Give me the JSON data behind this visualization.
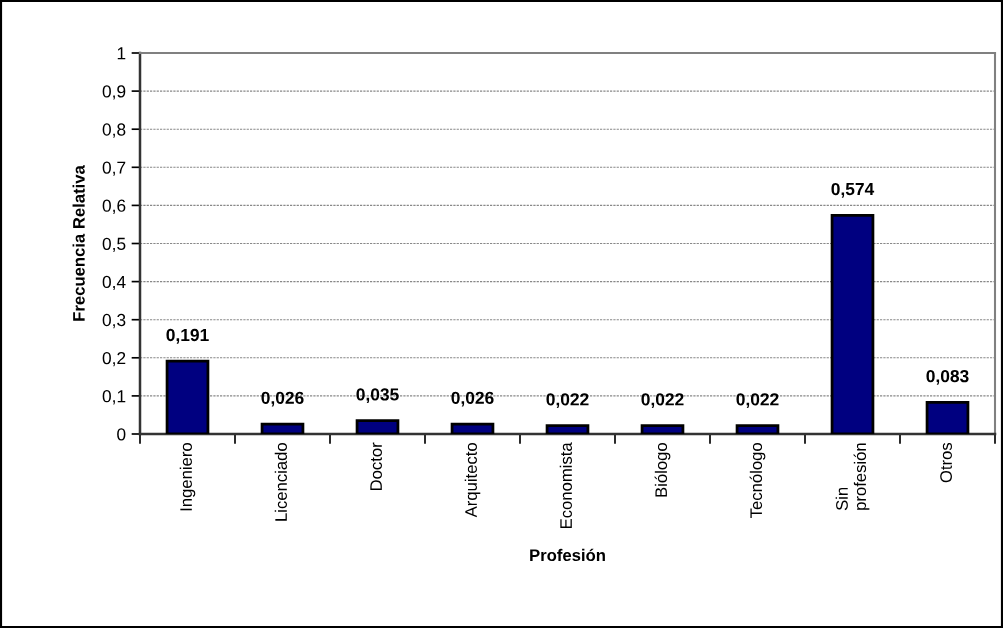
{
  "chart_data": {
    "type": "bar",
    "xlabel": "Profesión",
    "ylabel": "Frecuencia Relativa",
    "categories": [
      "Ingeniero",
      "Licenciado",
      "Doctor",
      "Arquitecto",
      "Economista",
      "Biólogo",
      "Tecnólogo",
      "Sin\nprofesión",
      "Otros"
    ],
    "values": [
      0.191,
      0.026,
      0.035,
      0.026,
      0.022,
      0.022,
      0.022,
      0.574,
      0.083
    ],
    "value_labels": [
      "0,191",
      "0,026",
      "0,035",
      "0,026",
      "0,022",
      "0,022",
      "0,022",
      "0,574",
      "0,083"
    ],
    "color": "#000080",
    "ylim": [
      0,
      1
    ],
    "yticks": [
      0,
      {
        "value": 0.1,
        "label": "0,1"
      },
      {
        "value": 0.2,
        "label": "0,2"
      },
      {
        "value": 0.3,
        "label": "0,3"
      },
      {
        "value": 0.4,
        "label": "0,4"
      },
      {
        "value": 0.5,
        "label": "0,5"
      },
      {
        "value": 0.6,
        "label": "0,6"
      },
      {
        "value": 0.7,
        "label": "0,7"
      },
      {
        "value": 0.8,
        "label": "0,8"
      },
      {
        "value": 0.9,
        "label": "0,9"
      },
      1
    ],
    "grid": "y",
    "legend": false
  }
}
